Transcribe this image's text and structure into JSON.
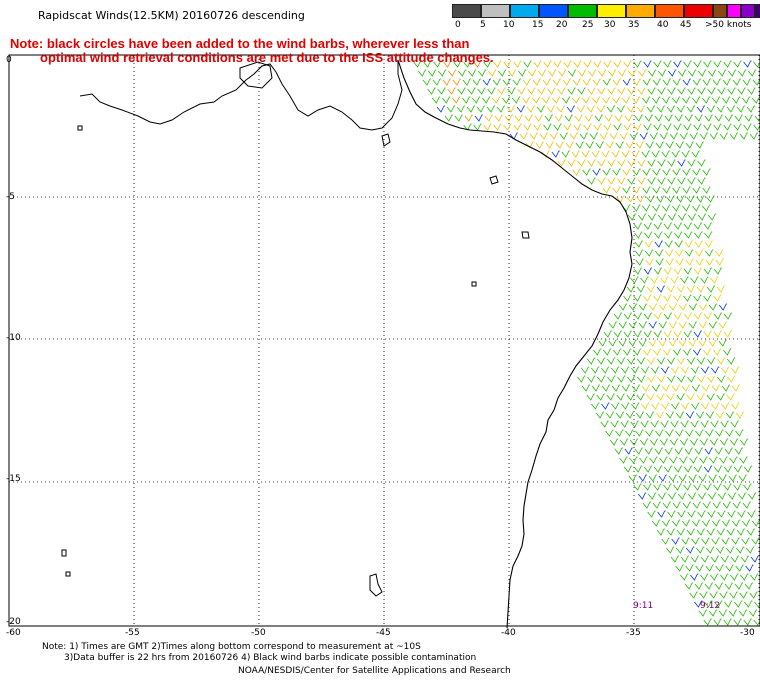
{
  "title": "Rapidscat Winds(12.5KM) 20160726 descending",
  "note_line1": "Note: black circles have been added to the wind barbs, wherever less than",
  "note_line2": "optimal wind retrieval conditions are met due to the ISS attitude changes.",
  "colorbar": {
    "colors": [
      "#4a4a4a",
      "#bfbfbf",
      "#00aaee",
      "#0055ff",
      "#00bb00",
      "#ffee00",
      "#ffaa00",
      "#ff5500",
      "#ee0000",
      "#8b4513",
      "#ff00ff",
      "#8a00c8",
      "#3a0070"
    ],
    "labels": [
      "0",
      "5",
      "10",
      "15",
      "20",
      "25",
      "30",
      "35",
      "40",
      "45",
      ">50 knots"
    ]
  },
  "axes": {
    "x_labels": [
      "-60",
      "-55",
      "-50",
      "-45",
      "-40",
      "-35",
      "-30"
    ],
    "y_labels": [
      "0",
      "-5",
      "-10",
      "-15",
      "-20"
    ]
  },
  "time_labels": [
    "9:11",
    "9:12"
  ],
  "footer": {
    "line1": "Note: 1) Times are GMT 2)Times along bottom correspond to measurement at ~10S",
    "line2": "3)Data buffer is 22 hrs from 20160726 4) Black wind barbs indicate possible contamination",
    "line3": "NOAA/NESDIS/Center for Satellite Applications and Research"
  }
}
